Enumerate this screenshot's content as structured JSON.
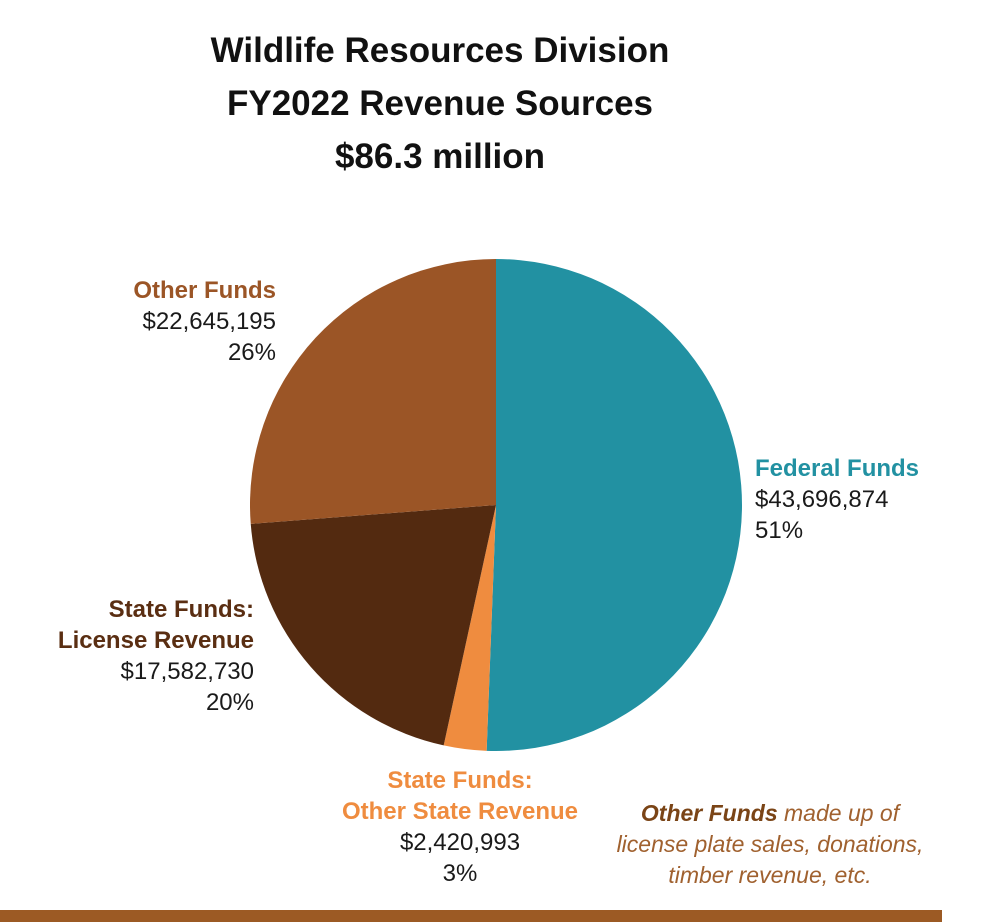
{
  "chart_data": {
    "type": "pie",
    "title": [
      "Wildlife Resources Division",
      "FY2022 Revenue Sources",
      "$86.3 million"
    ],
    "slices": [
      {
        "name": "Federal Funds",
        "amount": "$43,696,874",
        "pct": "51%",
        "value": 43696874,
        "color": "#2291a2"
      },
      {
        "name": "State Funds: Other State Revenue",
        "name_lines": [
          "State Funds:",
          "Other State Revenue"
        ],
        "amount": "$2,420,993",
        "pct": "3%",
        "value": 2420993,
        "color": "#ef8c3f"
      },
      {
        "name": "State Funds: License Revenue",
        "name_lines": [
          "State Funds:",
          "License Revenue"
        ],
        "amount": "$17,582,730",
        "pct": "20%",
        "value": 17582730,
        "color": "#532a10"
      },
      {
        "name": "Other Funds",
        "amount": "$22,645,195",
        "pct": "26%",
        "value": 22645195,
        "color": "#9b5526"
      }
    ],
    "start_angle": "12 o'clock, clockwise"
  },
  "labels": {
    "federal": {
      "name": "Federal Funds",
      "amount": "$43,696,874",
      "pct": "51%",
      "color": "#2291a2"
    },
    "other_state": {
      "name1": "State Funds:",
      "name2": "Other State Revenue",
      "amount": "$2,420,993",
      "pct": "3%",
      "color": "#ef8c3f"
    },
    "license": {
      "name1": "State Funds:",
      "name2": "License Revenue",
      "amount": "$17,582,730",
      "pct": "20%",
      "color": "#5a2e12"
    },
    "other_funds": {
      "name": "Other Funds",
      "amount": "$22,645,195",
      "pct": "26%",
      "color": "#9b5526"
    }
  },
  "note": {
    "bold": "Other Funds",
    "rest1": " made up of",
    "line2": "license plate sales, donations,",
    "line3": "timber revenue, etc."
  }
}
